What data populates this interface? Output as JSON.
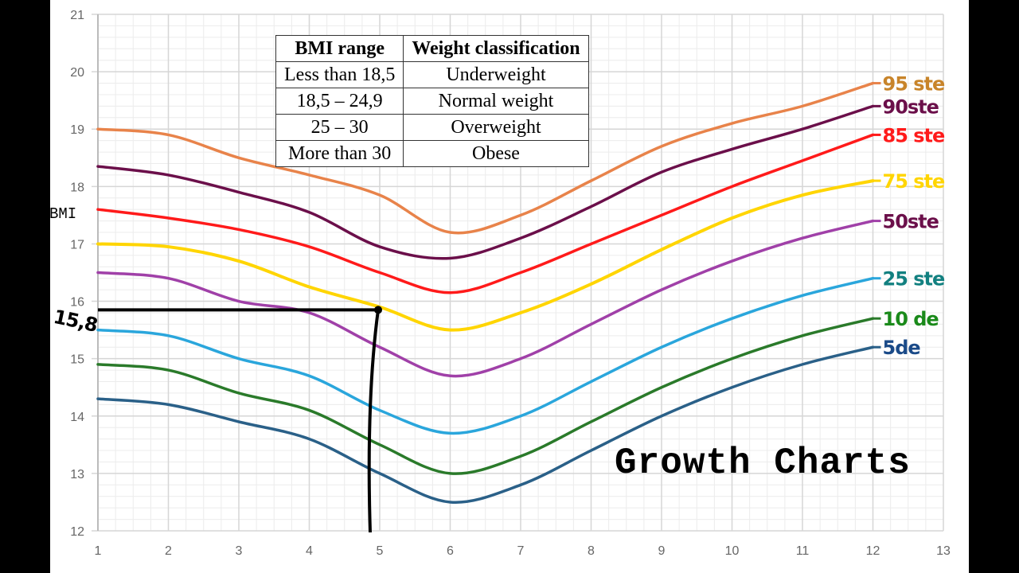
{
  "chart_data": {
    "type": "line",
    "title": "Growth Charts",
    "ylabel": "BMI",
    "xlabel": "",
    "xlim": [
      1,
      13
    ],
    "ylim": [
      12,
      21
    ],
    "x_ticks": [
      1,
      2,
      3,
      4,
      5,
      6,
      7,
      8,
      9,
      10,
      11,
      12,
      13
    ],
    "y_ticks": [
      12,
      13,
      14,
      15,
      16,
      17,
      18,
      19,
      20,
      21
    ],
    "grid": true,
    "x": [
      1,
      2,
      3,
      4,
      5,
      6,
      7,
      8,
      9,
      10,
      11,
      12
    ],
    "series": [
      {
        "name": "95 ste",
        "color": "#e8834a",
        "label_color": "#c8842a",
        "values": [
          19.0,
          18.9,
          18.5,
          18.2,
          17.85,
          17.2,
          17.5,
          18.1,
          18.7,
          19.1,
          19.4,
          19.8
        ]
      },
      {
        "name": "90ste",
        "color": "#6b0f4a",
        "label_color": "#6b0f4a",
        "values": [
          18.35,
          18.2,
          17.9,
          17.55,
          16.95,
          16.75,
          17.1,
          17.65,
          18.25,
          18.65,
          19.0,
          19.4
        ]
      },
      {
        "name": "85 ste",
        "color": "#ff1a1a",
        "label_color": "#ff1a1a",
        "values": [
          17.6,
          17.45,
          17.25,
          16.95,
          16.5,
          16.15,
          16.5,
          17.0,
          17.5,
          18.0,
          18.45,
          18.9
        ]
      },
      {
        "name": "75 ste",
        "color": "#ffd500",
        "label_color": "#ffd500",
        "values": [
          17.0,
          16.95,
          16.7,
          16.25,
          15.9,
          15.5,
          15.8,
          16.3,
          16.9,
          17.45,
          17.85,
          18.1
        ]
      },
      {
        "name": "50ste",
        "color": "#a040a8",
        "label_color": "#6b0f4a",
        "values": [
          16.5,
          16.4,
          16.0,
          15.8,
          15.2,
          14.7,
          15.0,
          15.6,
          16.2,
          16.7,
          17.1,
          17.4
        ]
      },
      {
        "name": "25 ste",
        "color": "#2aa6dc",
        "label_color": "#128080",
        "values": [
          15.5,
          15.4,
          15.0,
          14.7,
          14.1,
          13.7,
          14.0,
          14.6,
          15.2,
          15.7,
          16.1,
          16.4
        ]
      },
      {
        "name": "10 de",
        "color": "#2a7a2a",
        "label_color": "#1a8a1a",
        "values": [
          14.9,
          14.8,
          14.4,
          14.1,
          13.5,
          13.0,
          13.3,
          13.9,
          14.5,
          15.0,
          15.4,
          15.7
        ]
      },
      {
        "name": "5de",
        "color": "#2a6088",
        "label_color": "#1a4a88",
        "values": [
          14.3,
          14.2,
          13.9,
          13.6,
          13.0,
          12.5,
          12.8,
          13.4,
          14.0,
          14.5,
          14.9,
          15.2
        ]
      }
    ],
    "annotation": {
      "label": "15,8",
      "x": 5,
      "y": 15.85
    }
  },
  "table": {
    "headers": [
      "BMI range",
      "Weight classification"
    ],
    "rows": [
      [
        "Less than 18,5",
        "Underweight"
      ],
      [
        "18,5 – 24,9",
        "Normal weight"
      ],
      [
        "25 – 30",
        "Overweight"
      ],
      [
        "More than 30",
        "Obese"
      ]
    ]
  }
}
